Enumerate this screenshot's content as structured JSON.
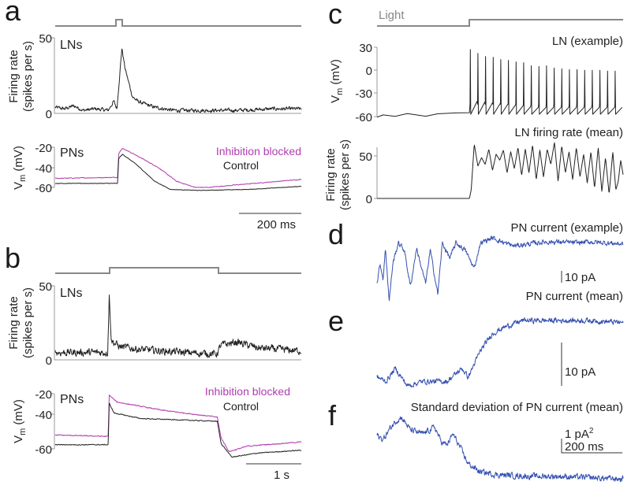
{
  "colors": {
    "control": "#222222",
    "inhibition_blocked": "#b03cb0",
    "pn_current": "#3450b0",
    "stimulus": "#888888"
  },
  "panels": {
    "a": "a",
    "b": "b",
    "c": "c",
    "d": "d",
    "e": "e",
    "f": "f"
  },
  "labels": {
    "lns": "LNs",
    "pns": "PNs",
    "firing_rate_1": "Firing rate",
    "firing_rate_2": "(spikes per s)",
    "vm_main": "V",
    "vm_sub": "m",
    "vm_unit": " (mV)",
    "inhibition_blocked": "Inhibition blocked",
    "control": "Control",
    "light": "Light",
    "ln_example": "LN (example)",
    "ln_firing_mean": "LN firing rate (mean)",
    "pn_current_example": "PN current (example)",
    "pn_current_mean": "PN current (mean)",
    "sd_pn_current": "Standard deviation of PN current (mean)"
  },
  "scale_bars": {
    "a_time": "200 ms",
    "b_time": "1 s",
    "d_amp": "10 pA",
    "e_amp": "10 pA",
    "f_amp": "1 pA",
    "f_amp_sup": "2",
    "f_time": "200 ms"
  },
  "chart_data": [
    {
      "panel": "a",
      "type": "line",
      "title": "LNs",
      "ylabel": "Firing rate (spikes per s)",
      "ylim": [
        0,
        50
      ],
      "yticks": [
        "50",
        "0"
      ],
      "xunit": "ms",
      "stimulus_on": [
        195,
        215
      ],
      "series": [
        {
          "name": "LN firing rate",
          "points": [
            [
              0,
              4
            ],
            [
              30,
              3
            ],
            [
              60,
              5
            ],
            [
              90,
              2
            ],
            [
              130,
              3
            ],
            [
              170,
              2
            ],
            [
              188,
              8
            ],
            [
              198,
              3
            ],
            [
              214,
              43
            ],
            [
              224,
              30
            ],
            [
              234,
              22
            ],
            [
              248,
              11
            ],
            [
              265,
              8
            ],
            [
              290,
              6
            ],
            [
              320,
              4
            ],
            [
              380,
              2
            ],
            [
              480,
              2
            ],
            [
              580,
              2
            ],
            [
              700,
              3
            ],
            [
              790,
              3
            ]
          ],
          "noise": 2
        }
      ]
    },
    {
      "panel": "a",
      "type": "line",
      "title": "PNs",
      "ylabel": "Vm (mV)",
      "ylim": [
        -62,
        -18
      ],
      "yticks": [
        "-20",
        "-40",
        "-60"
      ],
      "xunit": "ms",
      "series": [
        {
          "name": "Inhibition blocked",
          "color_key": "inhibition_blocked",
          "points": [
            [
              0,
              -51
            ],
            [
              195,
              -50
            ],
            [
              200,
              -50
            ],
            [
              204,
              -26
            ],
            [
              216,
              -21
            ],
            [
              260,
              -28
            ],
            [
              330,
              -40
            ],
            [
              390,
              -54
            ],
            [
              450,
              -60
            ],
            [
              490,
              -60
            ],
            [
              600,
              -57
            ],
            [
              790,
              -52
            ]
          ],
          "noise": 0.6
        },
        {
          "name": "Control",
          "color_key": "control",
          "points": [
            [
              0,
              -56
            ],
            [
              200,
              -56
            ],
            [
              204,
              -31
            ],
            [
              216,
              -27
            ],
            [
              260,
              -37
            ],
            [
              320,
              -54
            ],
            [
              370,
              -62
            ],
            [
              460,
              -63
            ],
            [
              620,
              -62
            ],
            [
              790,
              -59
            ]
          ],
          "noise": 0.4
        }
      ]
    },
    {
      "panel": "b",
      "type": "line",
      "title": "LNs",
      "ylabel": "Firing rate (spikes per s)",
      "ylim": [
        0,
        50
      ],
      "yticks": [
        "50",
        "0"
      ],
      "xunit": "s",
      "stimulus_on": [
        1.0,
        3.05
      ],
      "series": [
        {
          "name": "LN firing rate",
          "points": [
            [
              0,
              5
            ],
            [
              0.98,
              5
            ],
            [
              1.01,
              43
            ],
            [
              1.05,
              13
            ],
            [
              1.2,
              9
            ],
            [
              1.6,
              7
            ],
            [
              2.4,
              5
            ],
            [
              3.02,
              4
            ],
            [
              3.1,
              10
            ],
            [
              3.4,
              12
            ],
            [
              3.8,
              8
            ],
            [
              4.6,
              6
            ]
          ],
          "noise": 4
        }
      ]
    },
    {
      "panel": "b",
      "type": "line",
      "title": "PNs",
      "ylabel": "Vm (mV)",
      "ylim": [
        -66,
        -18
      ],
      "yticks": [
        "-20",
        "-40",
        "-60"
      ],
      "xunit": "s",
      "series": [
        {
          "name": "Inhibition blocked",
          "color_key": "inhibition_blocked",
          "points": [
            [
              0,
              -50
            ],
            [
              0.99,
              -51
            ],
            [
              1.01,
              -21
            ],
            [
              1.15,
              -26
            ],
            [
              2.0,
              -32
            ],
            [
              3.03,
              -37
            ],
            [
              3.1,
              -52
            ],
            [
              3.25,
              -62
            ],
            [
              3.6,
              -58
            ],
            [
              4.6,
              -55
            ]
          ],
          "noise": 0.6
        },
        {
          "name": "Control",
          "color_key": "control",
          "points": [
            [
              0,
              -57
            ],
            [
              0.99,
              -57
            ],
            [
              1.01,
              -27
            ],
            [
              1.1,
              -34
            ],
            [
              1.6,
              -38
            ],
            [
              3.03,
              -40
            ],
            [
              3.1,
              -56
            ],
            [
              3.3,
              -66
            ],
            [
              3.8,
              -63
            ],
            [
              4.6,
              -61
            ]
          ],
          "noise": 0.5
        }
      ]
    },
    {
      "panel": "c",
      "type": "line",
      "title": "LN (example)",
      "ylabel": "Vm (mV)",
      "ylim": [
        -60,
        30
      ],
      "yticks": [
        "30",
        "0",
        "-30",
        "-60"
      ],
      "xunit": "ms",
      "light_on": 304,
      "baseline": [
        [
          0,
          -61
        ],
        [
          20,
          -57
        ],
        [
          60,
          -59
        ],
        [
          100,
          -57
        ],
        [
          160,
          -60
        ],
        [
          200,
          -56
        ],
        [
          260,
          -55
        ],
        [
          304,
          -55
        ]
      ],
      "spike_peaks": [
        27,
        22,
        18,
        17,
        14,
        13,
        11,
        10,
        6,
        5,
        6,
        3,
        2,
        1,
        1,
        0,
        0,
        0,
        -1,
        -1
      ]
    },
    {
      "panel": "c",
      "type": "line",
      "title": "LN firing rate (mean)",
      "ylabel": "Firing rate (spikes per s)",
      "ylim": [
        0,
        60
      ],
      "yticks": [
        "50",
        "0"
      ],
      "xunit": "ms",
      "series": [
        {
          "name": "LN firing rate",
          "points": [
            [
              0,
              0
            ],
            [
              304,
              0
            ],
            [
              310,
              10
            ],
            [
              320,
              64
            ],
            [
              332,
              38
            ],
            [
              344,
              48
            ],
            [
              356,
              40
            ],
            [
              368,
              58
            ],
            [
              380,
              33
            ],
            [
              392,
              52
            ],
            [
              404,
              45
            ],
            [
              416,
              57
            ],
            [
              428,
              30
            ],
            [
              440,
              55
            ],
            [
              452,
              35
            ],
            [
              464,
              60
            ],
            [
              476,
              27
            ],
            [
              488,
              58
            ],
            [
              500,
              30
            ],
            [
              512,
              63
            ],
            [
              524,
              22
            ],
            [
              536,
              57
            ],
            [
              548,
              25
            ],
            [
              560,
              58
            ],
            [
              572,
              40
            ],
            [
              584,
              66
            ],
            [
              596,
              20
            ],
            [
              608,
              62
            ],
            [
              620,
              30
            ],
            [
              632,
              55
            ],
            [
              644,
              22
            ],
            [
              656,
              60
            ],
            [
              668,
              25
            ],
            [
              680,
              52
            ],
            [
              692,
              18
            ],
            [
              704,
              55
            ],
            [
              716,
              12
            ],
            [
              728,
              60
            ],
            [
              740,
              8
            ],
            [
              752,
              48
            ],
            [
              764,
              5
            ],
            [
              776,
              55
            ],
            [
              786,
              10
            ],
            [
              794,
              20
            ],
            [
              802,
              45
            ],
            [
              810,
              28
            ]
          ]
        }
      ]
    },
    {
      "panel": "d",
      "type": "line",
      "title": "PN current (example)",
      "yunit": "pA",
      "xunit": "ms",
      "series": [
        {
          "name": "PN current",
          "color_key": "pn_current",
          "points": [
            [
              0,
              -45
            ],
            [
              10,
              -25
            ],
            [
              20,
              -40
            ],
            [
              28,
              -10
            ],
            [
              40,
              -62
            ],
            [
              52,
              -25
            ],
            [
              70,
              -5
            ],
            [
              90,
              -12
            ],
            [
              110,
              -48
            ],
            [
              130,
              -10
            ],
            [
              160,
              -45
            ],
            [
              175,
              -12
            ],
            [
              200,
              -55
            ],
            [
              215,
              -5
            ],
            [
              240,
              -20
            ],
            [
              260,
              -5
            ],
            [
              290,
              -12
            ],
            [
              320,
              -30
            ],
            [
              340,
              -5
            ],
            [
              380,
              0
            ],
            [
              420,
              -5
            ],
            [
              450,
              -8
            ],
            [
              500,
              -6
            ],
            [
              550,
              -4
            ],
            [
              600,
              -4
            ],
            [
              650,
              -5
            ],
            [
              700,
              -4
            ],
            [
              810,
              -6
            ]
          ],
          "noise": 4
        }
      ]
    },
    {
      "panel": "e",
      "type": "line",
      "title": "PN current (mean)",
      "yunit": "pA",
      "xunit": "ms",
      "series": [
        {
          "name": "PN current",
          "color_key": "pn_current",
          "points": [
            [
              0,
              -13
            ],
            [
              30,
              -14
            ],
            [
              60,
              -11
            ],
            [
              100,
              -15
            ],
            [
              150,
              -14
            ],
            [
              230,
              -14
            ],
            [
              280,
              -11
            ],
            [
              300,
              -13
            ],
            [
              340,
              -7
            ],
            [
              380,
              -3
            ],
            [
              420,
              -1.5
            ],
            [
              480,
              0
            ],
            [
              600,
              0
            ],
            [
              700,
              0
            ],
            [
              810,
              -0.5
            ]
          ],
          "noise": 1
        }
      ]
    },
    {
      "panel": "f",
      "type": "line",
      "title": "Standard deviation of PN current (mean)",
      "yunit": "pA^2",
      "xunit": "ms",
      "series": [
        {
          "name": "SD of PN current",
          "color_key": "pn_current",
          "points": [
            [
              0,
              3.3
            ],
            [
              20,
              3.0
            ],
            [
              40,
              3.7
            ],
            [
              60,
              4.3
            ],
            [
              80,
              4.6
            ],
            [
              110,
              3.7
            ],
            [
              150,
              3.4
            ],
            [
              190,
              3.9
            ],
            [
              210,
              2.9
            ],
            [
              230,
              2.6
            ],
            [
              250,
              3.4
            ],
            [
              270,
              2.6
            ],
            [
              300,
              1.3
            ],
            [
              340,
              0.7
            ],
            [
              400,
              0.5
            ],
            [
              500,
              0.4
            ],
            [
              600,
              0.4
            ],
            [
              700,
              0.3
            ],
            [
              810,
              0.2
            ]
          ],
          "noise": 0.35
        }
      ]
    }
  ]
}
